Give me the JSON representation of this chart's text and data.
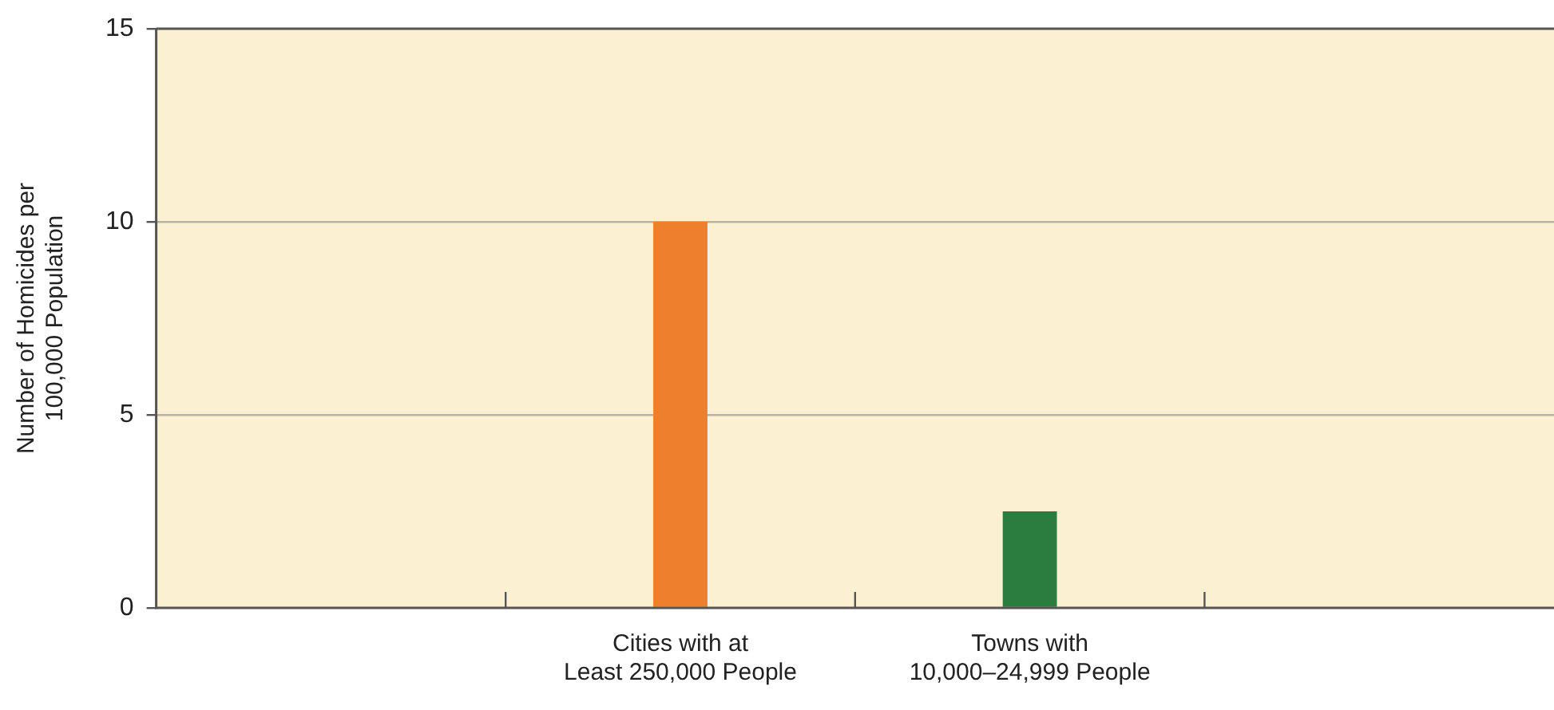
{
  "chart_data": {
    "type": "bar",
    "ylabel": "Number of Homicides per\n100,000 Population",
    "categories": [
      null,
      "Cities with at\nLeast 250,000 People",
      "Towns with\n10,000–24,999 People",
      null
    ],
    "values": [
      null,
      10,
      2.5,
      null
    ],
    "colors": [
      "#ee7f2d",
      "#ee7f2d",
      "#2a7d3e",
      "#2a7d3e"
    ],
    "ylim": [
      0,
      15
    ],
    "yticks": [
      0,
      5,
      10,
      15
    ],
    "grid": "y",
    "legend": false
  }
}
